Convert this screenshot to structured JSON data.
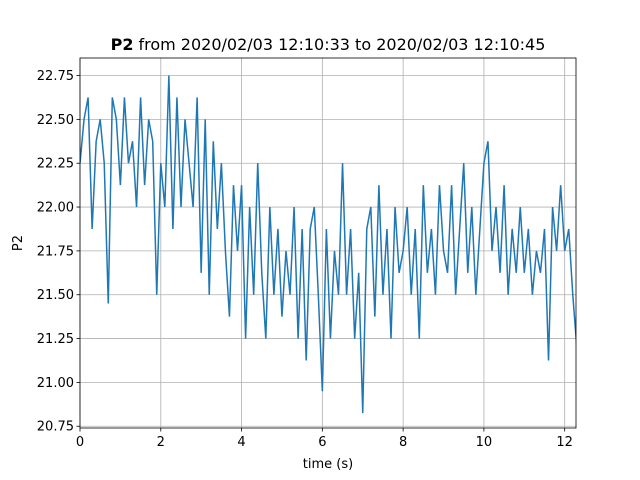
{
  "chart_data": {
    "type": "line",
    "title": {
      "bold": "P2",
      "text": "from 2020/02/03 12:10:33 to 2020/02/03 12:10:45"
    },
    "x_label": "time (s)",
    "y_label": "P2",
    "x": [
      0,
      0.1,
      0.2,
      0.3,
      0.4,
      0.5,
      0.6,
      0.7,
      0.8,
      0.9,
      1,
      1.1,
      1.2,
      1.3,
      1.4,
      1.5,
      1.6,
      1.7,
      1.8,
      1.9,
      2,
      2.1,
      2.2,
      2.3,
      2.4,
      2.5,
      2.6,
      2.7,
      2.8,
      2.9,
      3,
      3.1,
      3.2,
      3.3,
      3.4,
      3.5,
      3.6,
      3.7,
      3.8,
      3.9,
      4,
      4.1,
      4.2,
      4.3,
      4.4,
      4.5,
      4.6,
      4.7,
      4.8,
      4.9,
      5,
      5.1,
      5.2,
      5.3,
      5.4,
      5.5,
      5.6,
      5.7,
      5.8,
      5.9,
      6,
      6.1,
      6.2,
      6.3,
      6.4,
      6.5,
      6.6,
      6.7,
      6.8,
      6.9,
      7,
      7.1,
      7.2,
      7.3,
      7.4,
      7.5,
      7.6,
      7.7,
      7.8,
      7.9,
      8,
      8.1,
      8.2,
      8.3,
      8.4,
      8.5,
      8.6,
      8.7,
      8.8,
      8.9,
      9,
      9.1,
      9.2,
      9.3,
      9.4,
      9.5,
      9.6,
      9.7,
      9.8,
      9.9,
      10,
      10.1,
      10.2,
      10.3,
      10.4,
      10.5,
      10.6,
      10.7,
      10.8,
      10.9,
      11,
      11.1,
      11.2,
      11.3,
      11.4,
      11.5,
      11.6,
      11.7,
      11.8,
      11.9,
      12,
      12.1,
      12.2,
      12.3
    ],
    "series": [
      {
        "name": "P2",
        "color": "#1f77b4",
        "values": [
          22.25,
          22.5,
          22.625,
          21.875,
          22.375,
          22.5,
          22.25,
          21.45,
          22.625,
          22.5,
          22.125,
          22.625,
          22.25,
          22.375,
          22.0,
          22.625,
          22.125,
          22.5,
          22.375,
          21.5,
          22.25,
          22.0,
          22.75,
          21.875,
          22.625,
          22.0,
          22.5,
          22.25,
          22.0,
          22.625,
          21.625,
          22.5,
          21.5,
          22.375,
          21.875,
          22.25,
          21.75,
          21.375,
          22.125,
          21.75,
          22.125,
          21.25,
          22.0,
          21.5,
          22.25,
          21.625,
          21.25,
          22.0,
          21.5,
          21.875,
          21.375,
          21.75,
          21.5,
          22.0,
          21.25,
          21.875,
          21.125,
          21.875,
          22.0,
          21.5,
          20.95,
          21.875,
          21.25,
          21.75,
          21.5,
          22.25,
          21.5,
          21.875,
          21.25,
          21.625,
          20.825,
          21.875,
          22.0,
          21.375,
          22.125,
          21.5,
          21.875,
          21.25,
          22.0,
          21.625,
          21.75,
          22.0,
          21.5,
          21.875,
          21.25,
          22.125,
          21.625,
          21.875,
          21.5,
          22.125,
          21.75,
          21.625,
          22.125,
          21.5,
          21.875,
          22.25,
          21.625,
          22.0,
          21.5,
          21.875,
          22.25,
          22.375,
          21.75,
          22.0,
          21.625,
          22.125,
          21.5,
          21.875,
          21.625,
          22.0,
          21.625,
          21.875,
          21.5,
          21.75,
          21.625,
          21.875,
          21.125,
          22.0,
          21.75,
          22.125,
          21.75,
          21.875,
          21.5,
          21.2
        ]
      }
    ],
    "xlim": [
      0,
      12.28
    ],
    "ylim": [
      20.74,
      22.85
    ],
    "xticks": [
      0,
      2,
      4,
      6,
      8,
      10,
      12
    ],
    "yticks": [
      {
        "value": 20.75,
        "label": "20.75"
      },
      {
        "value": 21,
        "label": "21.00"
      },
      {
        "value": 21.25,
        "label": "21.25"
      },
      {
        "value": 21.5,
        "label": "21.50"
      },
      {
        "value": 21.75,
        "label": "21.75"
      },
      {
        "value": 22,
        "label": "22.00"
      },
      {
        "value": 22.25,
        "label": "22.25"
      },
      {
        "value": 22.5,
        "label": "22.50"
      },
      {
        "value": 22.75,
        "label": "22.75"
      }
    ],
    "grid": true
  }
}
